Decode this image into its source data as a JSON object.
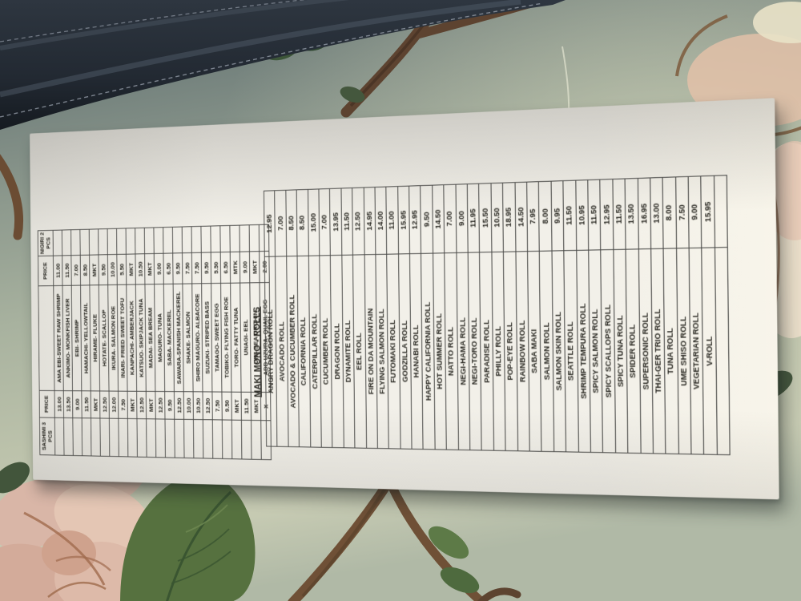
{
  "menu": {
    "sashimi": {
      "headers": [
        "SASHIMI 3 PCS",
        "PRICE",
        "",
        "PRICE",
        "NIGIRI 2 PCS"
      ],
      "items": [
        {
          "name": "AMA EBI-SWEET RAW SHRIMP",
          "sashimi_price": "13.00",
          "nigiri_price": "11.00"
        },
        {
          "name": "ANKIMO- MONKFISH LIVER",
          "sashimi_price": "13.50",
          "nigiri_price": "11.50"
        },
        {
          "name": "EBI- SHRIMP",
          "sashimi_price": "9.00",
          "nigiri_price": "7.00"
        },
        {
          "name": "HAMACHI- YELLOWTAIL",
          "sashimi_price": "11.50",
          "nigiri_price": "8.50"
        },
        {
          "name": "HIRAME- FLUKE",
          "sashimi_price": "MKT",
          "nigiri_price": "MKT"
        },
        {
          "name": "HOTATE- SCALLOP",
          "sashimi_price": "12.50",
          "nigiri_price": "9.50"
        },
        {
          "name": "IKURA- SALMON ROE",
          "sashimi_price": "12.00",
          "nigiri_price": "10.00"
        },
        {
          "name": "INARI- FRIED SWEET TOFU",
          "sashimi_price": "7.50",
          "nigiri_price": "5.50"
        },
        {
          "name": "KANPACHI- AMBERJACK",
          "sashimi_price": "MKT",
          "nigiri_price": "MKT"
        },
        {
          "name": "KATSUO- SKIPJACK TUNA",
          "sashimi_price": "12.50",
          "nigiri_price": "10.50"
        },
        {
          "name": "MADAI- SEA BREAM",
          "sashimi_price": "MKT",
          "nigiri_price": "MKT"
        },
        {
          "name": "MAGURO- TUNA",
          "sashimi_price": "12.50",
          "nigiri_price": "9.00"
        },
        {
          "name": "SABA- MACKEREL",
          "sashimi_price": "9.50",
          "nigiri_price": "6.50"
        },
        {
          "name": "SAWARA-SPANISH MACKEREL",
          "sashimi_price": "12.50",
          "nigiri_price": "9.50"
        },
        {
          "name": "SHAKE- SALMON",
          "sashimi_price": "10.00",
          "nigiri_price": "7.50"
        },
        {
          "name": "SHIRO MAGURO- ALBACORE",
          "sashimi_price": "10.50",
          "nigiri_price": "7.50"
        },
        {
          "name": "SUZUKI- STRIPED BASS",
          "sashimi_price": "12.50",
          "nigiri_price": "9.50"
        },
        {
          "name": "TAMAGO- SWEET EGG",
          "sashimi_price": "7.50",
          "nigiri_price": "5.50"
        },
        {
          "name": "TOBIKO- FLYING FISH ROE",
          "sashimi_price": "9.50",
          "nigiri_price": "6.50"
        },
        {
          "name": "TORO- FATTY TUNA",
          "sashimi_price": "MKT",
          "nigiri_price": "MTK"
        },
        {
          "name": "UNAGI- EEL",
          "sashimi_price": "11.50",
          "nigiri_price": "9.00"
        },
        {
          "name": "UNI- SEA URCHIN",
          "sashimi_price": "MKT",
          "nigiri_price": "MKT"
        },
        {
          "name": "ADD UZURA- QUAIL EGG",
          "sashimi_price": "X",
          "nigiri_price": "2.00"
        }
      ]
    },
    "maki": {
      "title": "MAKI MONO - ROLLS",
      "items": [
        {
          "name": "ANGRY DRAGON ROLL",
          "price": "12.95"
        },
        {
          "name": "AVOCADO ROLL",
          "price": "7.00"
        },
        {
          "name": "AVOCADO & CUCUMBER ROLL",
          "price": "8.50"
        },
        {
          "name": "CALIFORNIA ROLL",
          "price": "8.50"
        },
        {
          "name": "CATERPILLAR ROLL",
          "price": "15.00"
        },
        {
          "name": "CUCUMBER ROLL",
          "price": "7.00"
        },
        {
          "name": "DRAGON ROLL",
          "price": "13.95"
        },
        {
          "name": "DYNAMITE ROLL",
          "price": "11.50"
        },
        {
          "name": "EEL ROLL",
          "price": "12.50"
        },
        {
          "name": "FIRE ON DA MOUNTAIN",
          "price": "14.95"
        },
        {
          "name": "FLYING SALMON ROLL",
          "price": "14.00"
        },
        {
          "name": "FUTOMAKI ROLL",
          "price": "11.00"
        },
        {
          "name": "GODZILLA ROLL",
          "price": "15.95"
        },
        {
          "name": "HANABI ROLL",
          "price": "12.95"
        },
        {
          "name": "HAPPY CALIFORNIA ROLL",
          "price": "9.50"
        },
        {
          "name": "HOT SUMMER ROLL",
          "price": "14.50"
        },
        {
          "name": "NATTO ROLL",
          "price": "7.00"
        },
        {
          "name": "NEGI-HAMA ROLL",
          "price": "9.00"
        },
        {
          "name": "NEGI-TORO ROLL",
          "price": "11.95"
        },
        {
          "name": "PARADISE ROLL",
          "price": "15.50"
        },
        {
          "name": "PHILLY ROLL",
          "price": "10.50"
        },
        {
          "name": "POP-EYE ROLL",
          "price": "18.95"
        },
        {
          "name": "RAINBOW ROLL",
          "price": "14.50"
        },
        {
          "name": "SABA MAKI",
          "price": "7.95"
        },
        {
          "name": "SALMON ROLL",
          "price": "8.00"
        },
        {
          "name": "SALMON SKIN ROLL",
          "price": "9.95"
        },
        {
          "name": "SEATTLE ROLL",
          "price": "11.50"
        },
        {
          "name": "SHRIMP TEMPURA ROLL",
          "price": "10.95"
        },
        {
          "name": "SPICY SALMON ROLL",
          "price": "11.50"
        },
        {
          "name": "SPICY SCALLOPS ROLL",
          "price": "12.95"
        },
        {
          "name": "SPICY TUNA ROLL",
          "price": "11.50"
        },
        {
          "name": "SPIDER ROLL",
          "price": "13.50"
        },
        {
          "name": "SUPERSONIC ROLL",
          "price": "16.95"
        },
        {
          "name": "THAI-GER TRIO ROLL",
          "price": "13.00"
        },
        {
          "name": "TUNA ROLL",
          "price": "8.00"
        },
        {
          "name": "UME SHISO ROLL",
          "price": "7.50"
        },
        {
          "name": "VEGETARIAN ROLL",
          "price": "9.00"
        },
        {
          "name": "V-ROLL",
          "price": "15.95"
        }
      ]
    }
  },
  "colors": {
    "tablecloth_sage": "#aab4a0",
    "booth_leather_navy": "#232a31",
    "paper_white": "#f2f0e9",
    "table_line": "#4a4a48",
    "ink": "#26251f"
  }
}
